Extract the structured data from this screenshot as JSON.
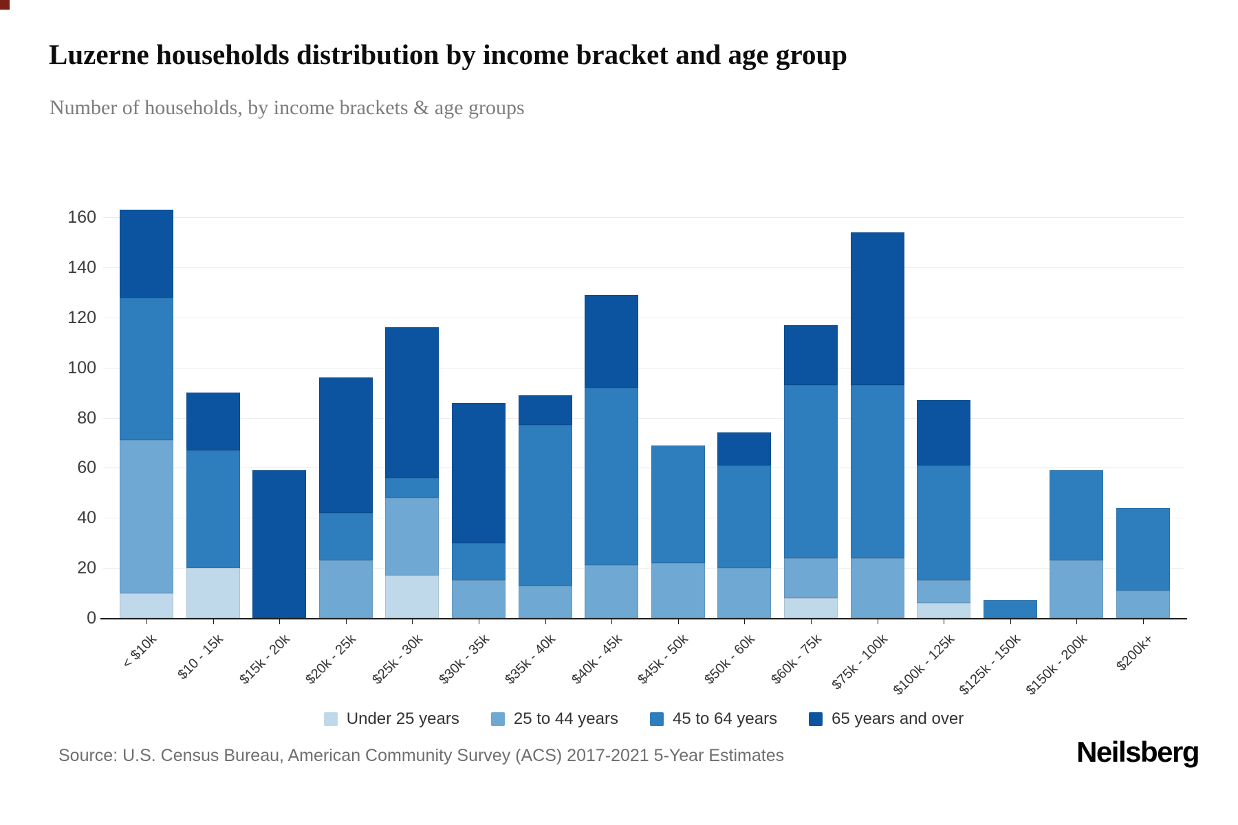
{
  "title": "Luzerne households distribution by income bracket and age group",
  "subtitle": "Number of households, by income brackets & age groups",
  "source": "Source: U.S. Census Bureau, American Community Survey (ACS) 2017-2021 5-Year Estimates",
  "brand": "Neilsberg",
  "chart_data": {
    "type": "bar",
    "stacked": true,
    "title": "Luzerne households distribution by income bracket and age group",
    "subtitle": "Number of households, by income brackets & age groups",
    "xlabel": "",
    "ylabel": "Number of households",
    "ylim": [
      0,
      160
    ],
    "yticks": [
      0,
      20,
      40,
      60,
      80,
      100,
      120,
      140,
      160
    ],
    "grid": true,
    "legend_position": "bottom",
    "categories": [
      "< $10k",
      "$10 - 15k",
      "$15k - 20k",
      "$20k - 25k",
      "$25k - 30k",
      "$30k - 35k",
      "$35k - 40k",
      "$40k - 45k",
      "$45k - 50k",
      "$50k - 60k",
      "$60k - 75k",
      "$75k - 100k",
      "$100k - 125k",
      "$125k - 150k",
      "$150k - 200k",
      "$200k+"
    ],
    "series": [
      {
        "name": "Under 25 years",
        "color": "#bfd8ea",
        "values": [
          10,
          20,
          0,
          0,
          17,
          0,
          0,
          0,
          0,
          0,
          8,
          0,
          6,
          0,
          0,
          0
        ]
      },
      {
        "name": "25 to 44 years",
        "color": "#6fa8d3",
        "values": [
          61,
          0,
          0,
          23,
          31,
          15,
          13,
          21,
          22,
          20,
          16,
          24,
          9,
          0,
          23,
          11
        ]
      },
      {
        "name": "45 to 64 years",
        "color": "#2e7dbd",
        "values": [
          57,
          47,
          0,
          19,
          8,
          15,
          64,
          71,
          47,
          41,
          69,
          69,
          46,
          7,
          36,
          33
        ]
      },
      {
        "name": "65 years and over",
        "color": "#0c549f",
        "values": [
          35,
          23,
          59,
          54,
          60,
          56,
          12,
          37,
          0,
          13,
          24,
          61,
          26,
          0,
          0,
          0
        ]
      }
    ],
    "totals": [
      163,
      90,
      59,
      96,
      116,
      86,
      89,
      129,
      69,
      74,
      117,
      154,
      87,
      7,
      59,
      44
    ]
  }
}
